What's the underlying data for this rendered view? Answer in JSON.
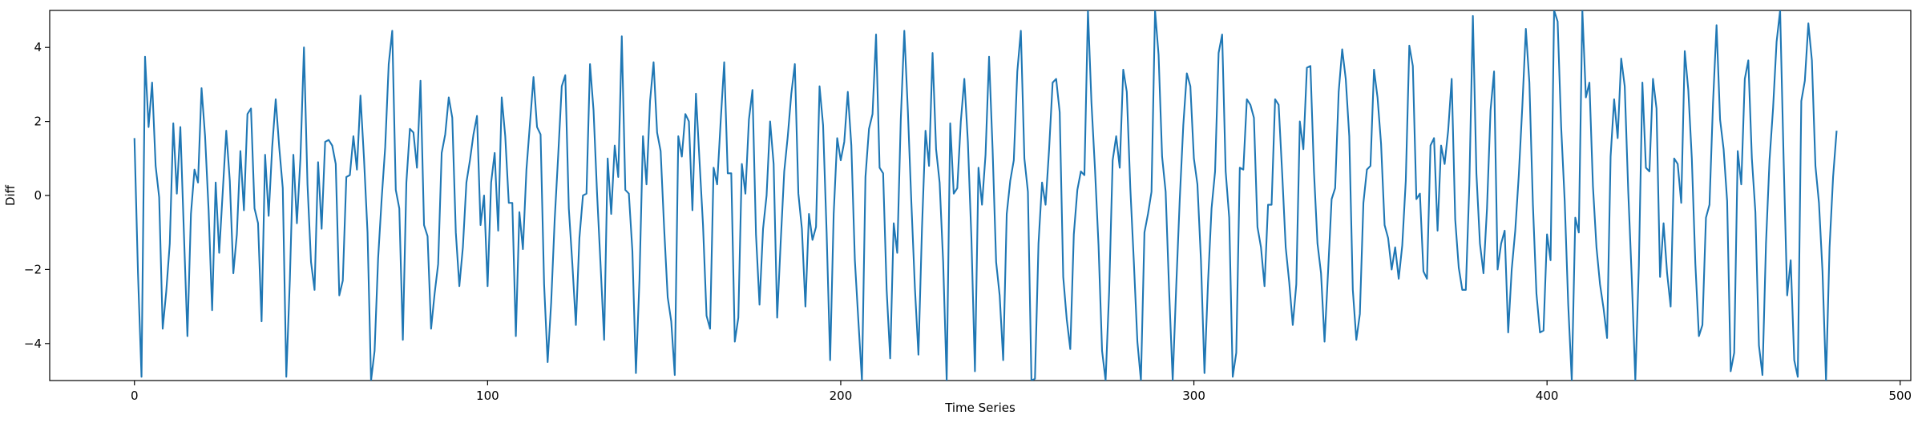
{
  "chart_data": {
    "type": "line",
    "title": "",
    "xlabel": "Time Series",
    "ylabel": "Diff",
    "xlim": [
      -24,
      503
    ],
    "ylim": [
      -5,
      5
    ],
    "x_ticks": [
      0,
      100,
      200,
      300,
      400,
      500
    ],
    "x_tick_labels": [
      "0",
      "100",
      "200",
      "300",
      "400",
      "500"
    ],
    "y_ticks": [
      -4,
      -2,
      0,
      2,
      4
    ],
    "y_tick_labels": [
      "−4",
      "−2",
      "0",
      "2",
      "4"
    ],
    "grid": false,
    "legend": "none",
    "series": [
      {
        "color": "#1f77b4",
        "values": [
          1.55,
          -2.1,
          -4.9,
          3.75,
          1.85,
          3.05,
          0.8,
          -0.05,
          -3.6,
          -2.6,
          -1.3,
          1.95,
          0.05,
          1.85,
          -1.0,
          -3.8,
          -0.5,
          0.7,
          0.35,
          2.9,
          1.6,
          -0.4,
          -3.1,
          0.35,
          -1.55,
          0.1,
          1.75,
          0.4,
          -2.1,
          -1.05,
          1.2,
          -0.4,
          2.2,
          2.35,
          -0.35,
          -0.75,
          -3.4,
          1.1,
          -0.55,
          1.3,
          2.6,
          1.3,
          0.2,
          -4.9,
          -2.3,
          1.1,
          -0.75,
          1.0,
          4.0,
          0.3,
          -1.8,
          -2.55,
          0.9,
          -0.9,
          1.45,
          1.5,
          1.35,
          0.85,
          -2.7,
          -2.3,
          0.5,
          0.55,
          1.6,
          0.7,
          2.7,
          1.0,
          -1.0,
          -5.0,
          -4.2,
          -1.7,
          -0.1,
          1.3,
          3.55,
          4.45,
          0.15,
          -0.35,
          -3.9,
          0.35,
          1.8,
          1.7,
          0.75,
          3.1,
          -0.8,
          -1.1,
          -3.6,
          -2.65,
          -1.85,
          1.15,
          1.65,
          2.65,
          2.1,
          -1.0,
          -2.45,
          -1.4,
          0.35,
          0.95,
          1.65,
          2.15,
          -0.8,
          0.0,
          -2.45,
          0.35,
          1.15,
          -0.95,
          2.65,
          1.6,
          -0.2,
          -0.2,
          -3.8,
          -0.45,
          -1.45,
          0.7,
          1.95,
          3.2,
          1.85,
          1.65,
          -2.4,
          -4.5,
          -2.9,
          -0.65,
          1.1,
          2.95,
          3.25,
          -0.35,
          -1.85,
          -3.5,
          -1.15,
          0.0,
          0.05,
          3.55,
          2.3,
          0.05,
          -1.9,
          -3.9,
          1.0,
          -0.5,
          1.35,
          0.5,
          4.3,
          0.15,
          0.05,
          -1.5,
          -4.8,
          -2.3,
          1.6,
          0.3,
          2.55,
          3.6,
          1.7,
          1.2,
          -0.9,
          -2.75,
          -3.4,
          -4.85,
          1.6,
          1.05,
          2.2,
          2.0,
          -0.4,
          2.75,
          0.95,
          -0.8,
          -3.25,
          -3.6,
          0.75,
          0.3,
          2.0,
          3.6,
          0.6,
          0.6,
          -3.95,
          -3.3,
          0.85,
          0.05,
          2.05,
          2.85,
          -1.05,
          -2.95,
          -0.9,
          0.0,
          2.0,
          0.85,
          -3.3,
          -1.25,
          0.65,
          1.6,
          2.75,
          3.55,
          0.05,
          -0.9,
          -3.0,
          -0.5,
          -1.2,
          -0.85,
          2.95,
          1.9,
          -1.0,
          -4.45,
          -0.5,
          1.55,
          0.95,
          1.45,
          2.8,
          1.35,
          -1.75,
          -3.4,
          -5.0,
          0.5,
          1.8,
          2.2,
          4.35,
          0.75,
          0.6,
          -2.55,
          -4.4,
          -0.75,
          -1.55,
          2.05,
          4.45,
          2.3,
          -0.2,
          -2.5,
          -4.3,
          -0.9,
          1.75,
          0.8,
          3.85,
          1.25,
          0.35,
          -1.8,
          -5.0,
          1.95,
          0.05,
          0.2,
          2.0,
          3.15,
          1.45,
          -1.15,
          -4.75,
          0.75,
          -0.25,
          1.1,
          3.75,
          1.25,
          -1.8,
          -2.7,
          -4.45,
          -0.5,
          0.4,
          0.95,
          3.35,
          4.45,
          1.0,
          0.1,
          -5.0,
          -4.95,
          -1.3,
          0.35,
          -0.25,
          1.25,
          3.05,
          3.15,
          2.25,
          -2.2,
          -3.35,
          -4.15,
          -1.05,
          0.15,
          0.65,
          0.55,
          5.0,
          2.5,
          0.7,
          -1.35,
          -4.2,
          -5.0,
          -2.6,
          0.95,
          1.6,
          0.75,
          3.4,
          2.8,
          0.2,
          -1.8,
          -3.95,
          -5.0,
          -1.0,
          -0.5,
          0.1,
          5.0,
          3.8,
          1.05,
          0.1,
          -2.6,
          -5.0,
          -2.45,
          -0.1,
          1.9,
          3.3,
          2.95,
          1.0,
          0.3,
          -1.75,
          -4.8,
          -2.35,
          -0.35,
          0.65,
          3.85,
          4.35,
          0.65,
          -0.6,
          -4.9,
          -4.25,
          0.75,
          0.7,
          2.6,
          2.45,
          2.1,
          -0.85,
          -1.4,
          -2.45,
          -0.25,
          -0.25,
          2.6,
          2.45,
          0.6,
          -1.4,
          -2.35,
          -3.5,
          -2.4,
          2.0,
          1.25,
          3.45,
          3.5,
          0.65,
          -1.3,
          -2.1,
          -3.95,
          -2.05,
          -0.1,
          0.2,
          2.8,
          3.95,
          3.15,
          1.6,
          -2.55,
          -3.9,
          -3.2,
          -0.2,
          0.7,
          0.8,
          3.4,
          2.65,
          1.4,
          -0.8,
          -1.15,
          -2.0,
          -1.4,
          -2.25,
          -1.35,
          0.4,
          4.05,
          3.5,
          -0.1,
          0.05,
          -2.05,
          -2.25,
          1.35,
          1.55,
          -0.95,
          1.35,
          0.85,
          1.75,
          3.15,
          -0.65,
          -1.95,
          -2.55,
          -2.55,
          0.3,
          4.85,
          0.6,
          -1.3,
          -2.1,
          -0.35,
          2.3,
          3.35,
          -2.0,
          -1.3,
          -0.95,
          -3.7,
          -2.0,
          -0.95,
          0.55,
          2.4,
          4.5,
          3.05,
          -0.25,
          -2.65,
          -3.7,
          -3.65,
          -1.05,
          -1.75,
          5.0,
          4.7,
          1.85,
          -0.15,
          -2.95,
          -5.0,
          -0.6,
          -1.0,
          5.0,
          2.65,
          3.05,
          0.25,
          -1.4,
          -2.4,
          -3.05,
          -3.85,
          1.05,
          2.6,
          1.55,
          3.7,
          2.95,
          0.1,
          -2.25,
          -5.0,
          -1.9,
          3.05,
          0.75,
          0.65,
          3.15,
          2.35,
          -2.2,
          -0.75,
          -2.1,
          -3.0,
          1.0,
          0.85,
          -0.2,
          3.9,
          2.85,
          1.0,
          -1.85,
          -3.8,
          -3.5,
          -0.6,
          -0.25,
          2.5,
          4.6,
          2.05,
          1.25,
          -0.15,
          -4.75,
          -4.25,
          1.2,
          0.3,
          3.15,
          3.65,
          1.0,
          -0.45,
          -4.05,
          -4.85,
          -1.3,
          0.95,
          2.35,
          4.15,
          5.0,
          0.95,
          -2.7,
          -1.75,
          -4.45,
          -4.9,
          2.55,
          3.1,
          4.65,
          3.65,
          0.8,
          -0.2,
          -2.05,
          -5.0,
          -1.4,
          0.5,
          1.75
        ]
      }
    ]
  }
}
